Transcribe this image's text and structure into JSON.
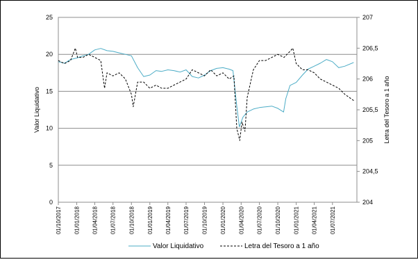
{
  "chart_data": {
    "type": "line",
    "title": "",
    "xlabel": "",
    "ylabel": "Valor Liquidativo",
    "ylabel_right": "Letra del Tesoro a 1 año",
    "ylim": [
      0,
      25
    ],
    "ylim_right": [
      204,
      207
    ],
    "yticks": [
      "0",
      "5",
      "10",
      "15",
      "20",
      "25"
    ],
    "yticks_right": [
      "204",
      "204,5",
      "205",
      "205,5",
      "206",
      "206,5",
      "207"
    ],
    "xlim": [
      "2017-10-01",
      "2021-10-31"
    ],
    "xtick_labels": [
      "01/10/2017",
      "01/01/2018",
      "01/04/2018",
      "01/07/2018",
      "01/10/2018",
      "01/01/2019",
      "01/04/2019",
      "01/07/2019",
      "01/10/2019",
      "01/01/2020",
      "01/04/2020",
      "01/07/2020",
      "01/10/2020",
      "01/01/2021",
      "01/04/2021",
      "01/07/2021"
    ],
    "xtick_dates": [
      "2017-10-01",
      "2018-01-01",
      "2018-04-01",
      "2018-07-01",
      "2018-10-01",
      "2019-01-01",
      "2019-04-01",
      "2019-07-01",
      "2019-10-01",
      "2020-01-01",
      "2020-04-01",
      "2020-07-01",
      "2020-10-01",
      "2021-01-01",
      "2021-04-01",
      "2021-07-01"
    ],
    "grid": "horizontal",
    "legend": "bottom",
    "series": [
      {
        "name": "Valor Liquidativo",
        "axis": "left",
        "color": "#4bacc6",
        "style": "solid",
        "x": [
          "2017-10-01",
          "2017-11-01",
          "2017-12-01",
          "2018-01-01",
          "2018-02-01",
          "2018-03-01",
          "2018-04-01",
          "2018-05-01",
          "2018-06-01",
          "2018-07-01",
          "2018-08-01",
          "2018-09-01",
          "2018-10-01",
          "2018-11-01",
          "2018-12-01",
          "2019-01-01",
          "2019-02-01",
          "2019-03-01",
          "2019-04-01",
          "2019-05-01",
          "2019-06-01",
          "2019-07-01",
          "2019-08-01",
          "2019-09-01",
          "2019-10-01",
          "2019-11-01",
          "2019-12-01",
          "2020-01-01",
          "2020-02-01",
          "2020-02-20",
          "2020-03-10",
          "2020-03-23",
          "2020-04-10",
          "2020-05-01",
          "2020-06-01",
          "2020-07-01",
          "2020-08-01",
          "2020-09-01",
          "2020-10-01",
          "2020-10-30",
          "2020-11-10",
          "2020-12-01",
          "2021-01-01",
          "2021-02-01",
          "2021-03-01",
          "2021-04-01",
          "2021-05-01",
          "2021-06-01",
          "2021-07-01",
          "2021-08-01",
          "2021-09-01",
          "2021-10-15"
        ],
        "values": [
          19.0,
          18.8,
          19.3,
          19.5,
          19.8,
          20.0,
          20.6,
          20.8,
          20.5,
          20.4,
          20.2,
          20.0,
          19.8,
          18.2,
          17.0,
          17.2,
          17.8,
          17.7,
          17.9,
          17.8,
          17.6,
          17.9,
          17.0,
          16.8,
          17.2,
          17.8,
          18.1,
          18.2,
          18.0,
          17.8,
          13.0,
          10.2,
          11.5,
          12.2,
          12.6,
          12.8,
          12.9,
          13.0,
          12.7,
          12.2,
          14.0,
          15.8,
          16.2,
          17.2,
          18.0,
          18.4,
          18.8,
          19.3,
          19.0,
          18.2,
          18.4,
          18.9
        ]
      },
      {
        "name": "Letra del Tesoro a 1 año",
        "axis": "right",
        "color": "#000000",
        "style": "dashed",
        "x": [
          "2017-10-01",
          "2017-11-01",
          "2017-12-01",
          "2017-12-25",
          "2018-01-05",
          "2018-02-01",
          "2018-03-01",
          "2018-04-01",
          "2018-05-01",
          "2018-05-20",
          "2018-06-01",
          "2018-07-01",
          "2018-08-01",
          "2018-09-01",
          "2018-10-01",
          "2018-10-10",
          "2018-11-01",
          "2018-12-01",
          "2019-01-01",
          "2019-02-01",
          "2019-03-01",
          "2019-04-01",
          "2019-05-01",
          "2019-06-01",
          "2019-07-01",
          "2019-08-01",
          "2019-09-01",
          "2019-10-01",
          "2019-11-01",
          "2019-12-01",
          "2020-01-01",
          "2020-02-01",
          "2020-02-25",
          "2020-03-10",
          "2020-03-25",
          "2020-04-05",
          "2020-04-20",
          "2020-05-01",
          "2020-06-01",
          "2020-07-01",
          "2020-08-01",
          "2020-09-01",
          "2020-10-01",
          "2020-11-01",
          "2020-12-01",
          "2020-12-15",
          "2021-01-01",
          "2021-02-01",
          "2021-03-01",
          "2021-04-01",
          "2021-05-01",
          "2021-06-01",
          "2021-07-01",
          "2021-08-01",
          "2021-09-01",
          "2021-10-15"
        ],
        "values": [
          206.3,
          206.25,
          206.3,
          206.5,
          206.35,
          206.35,
          206.4,
          206.35,
          206.3,
          205.85,
          206.1,
          206.05,
          206.1,
          206.0,
          205.75,
          205.55,
          205.95,
          205.95,
          205.85,
          205.9,
          205.85,
          205.85,
          205.9,
          205.95,
          206.0,
          206.15,
          206.1,
          206.05,
          206.15,
          206.05,
          206.1,
          206.0,
          206.05,
          205.2,
          205.0,
          205.3,
          205.15,
          205.7,
          206.15,
          206.3,
          206.3,
          206.35,
          206.4,
          206.35,
          206.45,
          206.5,
          206.25,
          206.15,
          206.15,
          206.1,
          206.0,
          205.95,
          205.9,
          205.85,
          205.75,
          205.65
        ]
      }
    ]
  }
}
